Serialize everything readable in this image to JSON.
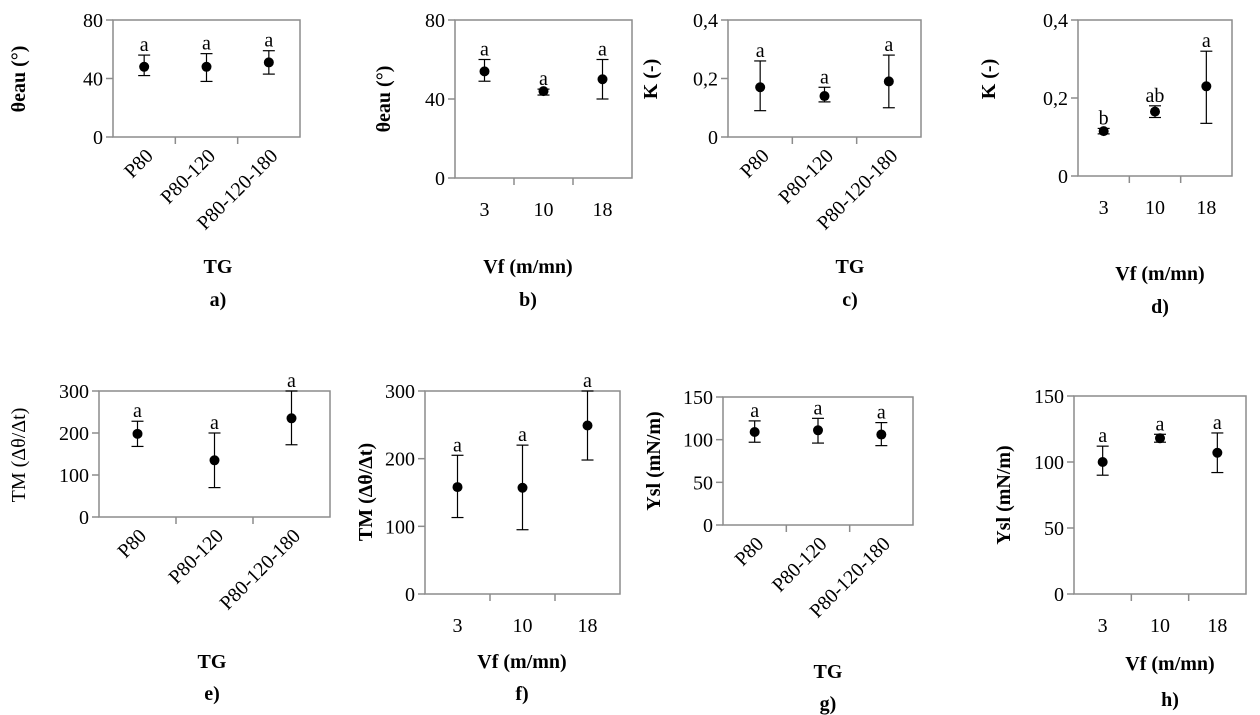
{
  "chart_data": [
    {
      "type": "scatter",
      "panel": "a)",
      "xlabel": "TG",
      "ylabel": "θeau (°)",
      "categories": [
        "P80",
        "P80-120",
        "P80-120-180"
      ],
      "values": [
        48,
        48,
        51
      ],
      "err_low": [
        42,
        38,
        43
      ],
      "err_high": [
        56,
        57,
        59
      ],
      "letters": [
        "a",
        "a",
        "a"
      ],
      "ylim": [
        0,
        80
      ],
      "yticks": [
        "0",
        "40",
        "80"
      ]
    },
    {
      "type": "scatter",
      "panel": "b)",
      "xlabel": "Vf (m/mn)",
      "ylabel": "θeau (°)",
      "categories": [
        "3",
        "10",
        "18"
      ],
      "values": [
        54,
        44,
        50
      ],
      "err_low": [
        49,
        42,
        40
      ],
      "err_high": [
        60,
        45,
        60
      ],
      "letters": [
        "a",
        "a",
        "a"
      ],
      "ylim": [
        0,
        80
      ],
      "yticks": [
        "0",
        "40",
        "80"
      ]
    },
    {
      "type": "scatter",
      "panel": "c)",
      "xlabel": "TG",
      "ylabel": "K (-)",
      "categories": [
        "P80",
        "P80-120",
        "P80-120-180"
      ],
      "values": [
        0.17,
        0.14,
        0.19
      ],
      "err_low": [
        0.09,
        0.12,
        0.1
      ],
      "err_high": [
        0.26,
        0.17,
        0.28
      ],
      "letters": [
        "a",
        "a",
        "a"
      ],
      "ylim": [
        0,
        0.4
      ],
      "yticks": [
        "0",
        "0,2",
        "0,4"
      ]
    },
    {
      "type": "scatter",
      "panel": "d)",
      "xlabel": "Vf (m/mn)",
      "ylabel": "K (-)",
      "categories": [
        "3",
        "10",
        "18"
      ],
      "values": [
        0.115,
        0.165,
        0.23
      ],
      "err_low": [
        0.108,
        0.15,
        0.135
      ],
      "err_high": [
        0.122,
        0.18,
        0.32
      ],
      "letters": [
        "b",
        "ab",
        "a"
      ],
      "ylim": [
        0,
        0.4
      ],
      "yticks": [
        "0",
        "0,2",
        "0,4"
      ]
    },
    {
      "type": "scatter",
      "panel": "e)",
      "xlabel": "TG",
      "ylabel": "TM (Δθ/Δt)",
      "categories": [
        "P80",
        "P80-120",
        "P80-120-180"
      ],
      "values": [
        198,
        135,
        235
      ],
      "err_low": [
        168,
        70,
        172
      ],
      "err_high": [
        228,
        200,
        300
      ],
      "letters": [
        "a",
        "a",
        "a"
      ],
      "ylim": [
        0,
        300
      ],
      "yticks": [
        "0",
        "100",
        "200",
        "300"
      ]
    },
    {
      "type": "scatter",
      "panel": "f)",
      "xlabel": "Vf (m/mn)",
      "ylabel": "TM (Δθ/Δt)",
      "categories": [
        "3",
        "10",
        "18"
      ],
      "values": [
        158,
        157,
        249
      ],
      "err_low": [
        113,
        95,
        198
      ],
      "err_high": [
        205,
        220,
        300
      ],
      "letters": [
        "a",
        "a",
        "a"
      ],
      "ylim": [
        0,
        300
      ],
      "yticks": [
        "0",
        "100",
        "200",
        "300"
      ]
    },
    {
      "type": "scatter",
      "panel": "g)",
      "xlabel": "TG",
      "ylabel": "Ysl (mN/m)",
      "categories": [
        "P80",
        "P80-120",
        "P80-120-180"
      ],
      "values": [
        109,
        111,
        106
      ],
      "err_low": [
        97,
        96,
        93
      ],
      "err_high": [
        122,
        125,
        120
      ],
      "letters": [
        "a",
        "a",
        "a"
      ],
      "ylim": [
        0,
        150
      ],
      "yticks": [
        "0",
        "50",
        "100",
        "150"
      ]
    },
    {
      "type": "scatter",
      "panel": "h)",
      "xlabel": "Vf (m/mn)",
      "ylabel": "Ysl (mN/m)",
      "categories": [
        "3",
        "10",
        "18"
      ],
      "values": [
        100,
        118,
        107
      ],
      "err_low": [
        90,
        115,
        92
      ],
      "err_high": [
        112,
        121,
        122
      ],
      "letters": [
        "a",
        "a",
        "a"
      ],
      "ylim": [
        0,
        150
      ],
      "yticks": [
        "0",
        "50",
        "100",
        "150"
      ]
    }
  ]
}
